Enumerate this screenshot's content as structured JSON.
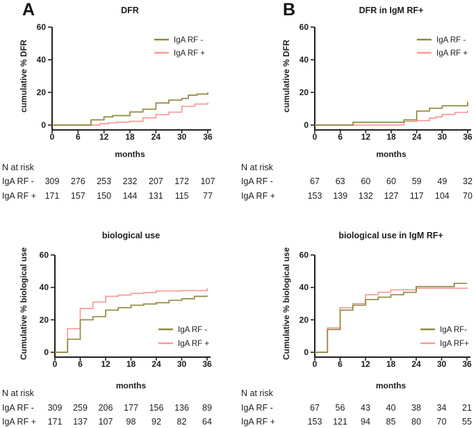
{
  "figure": {
    "panel_labels": [
      "A",
      "B"
    ],
    "x_label": "months",
    "n_at_risk_label": "N at risk",
    "colors": {
      "axis": "#231f20",
      "text": "#1c1c1c",
      "iga_rf_negative": "#8f893e",
      "iga_rf_positive": "#fb9a96"
    }
  },
  "chart_data": [
    {
      "id": "dfr",
      "type": "step_line",
      "title": "DFR",
      "xlabel": "months",
      "ylabel": "cumulative % DFR",
      "xlim": [
        0,
        36
      ],
      "ylim": [
        0,
        60
      ],
      "x_ticks": [
        0,
        6,
        12,
        18,
        24,
        30,
        36
      ],
      "y_ticks": [
        0,
        20,
        40,
        60
      ],
      "legend": [
        "IgA RF -",
        "IgA RF +"
      ],
      "series": [
        {
          "name": "IgA RF -",
          "color": "#8f893e",
          "points": [
            [
              0,
              0
            ],
            [
              9,
              3.2
            ],
            [
              12,
              5
            ],
            [
              14,
              5.8
            ],
            [
              18,
              8
            ],
            [
              21,
              9.7
            ],
            [
              24,
              13.5
            ],
            [
              27,
              15.3
            ],
            [
              30,
              16.3
            ],
            [
              31.5,
              18.3
            ],
            [
              33.5,
              19
            ],
            [
              36,
              20
            ]
          ]
        },
        {
          "name": "IgA RF +",
          "color": "#fb9a96",
          "points": [
            [
              0,
              0
            ],
            [
              11,
              0.8
            ],
            [
              13,
              1.3
            ],
            [
              15,
              1.8
            ],
            [
              18,
              2.3
            ],
            [
              21,
              4.4
            ],
            [
              24,
              6.4
            ],
            [
              27,
              7.9
            ],
            [
              30,
              11.4
            ],
            [
              33,
              12.9
            ],
            [
              36,
              13.8
            ]
          ]
        }
      ],
      "n_at_risk": {
        "rows": [
          {
            "label": "IgA RF -",
            "values": [
              309,
              276,
              253,
              232,
              207,
              172,
              107
            ]
          },
          {
            "label": "IgA RF +",
            "values": [
              171,
              157,
              150,
              144,
              131,
              115,
              77
            ]
          }
        ]
      }
    },
    {
      "id": "dfr-igm-rf-pos",
      "type": "step_line",
      "title": "DFR in IgM RF+",
      "xlabel": "months",
      "ylabel": "cumulative % DFR",
      "xlim": [
        0,
        36
      ],
      "ylim": [
        0,
        60
      ],
      "x_ticks": [
        0,
        6,
        12,
        18,
        24,
        30,
        36
      ],
      "y_ticks": [
        0,
        20,
        40,
        60
      ],
      "legend": [
        "IgA RF -",
        "IgA RF +"
      ],
      "series": [
        {
          "name": "IgA RF -",
          "color": "#8f893e",
          "points": [
            [
              0,
              0
            ],
            [
              9,
              1.7
            ],
            [
              21,
              3.2
            ],
            [
              24,
              8.6
            ],
            [
              27,
              10.3
            ],
            [
              30,
              11.8
            ],
            [
              36,
              14.3
            ]
          ]
        },
        {
          "name": "IgA RF +",
          "color": "#fb9a96",
          "points": [
            [
              0,
              0
            ],
            [
              21,
              2.2
            ],
            [
              24,
              2.7
            ],
            [
              27,
              4.2
            ],
            [
              28.5,
              5
            ],
            [
              30,
              6.5
            ],
            [
              33,
              7.8
            ],
            [
              36,
              9
            ]
          ]
        }
      ],
      "n_at_risk": {
        "rows": [
          {
            "label": "IgA RF -",
            "values": [
              67,
              63,
              60,
              60,
              59,
              49,
              32
            ]
          },
          {
            "label": "IgA RF +",
            "values": [
              153,
              139,
              132,
              127,
              117,
              104,
              70
            ]
          }
        ]
      }
    },
    {
      "id": "biological-use",
      "type": "step_line",
      "title": "biological use",
      "xlabel": "months",
      "ylabel": "Cumulative % biological use",
      "xlim": [
        0,
        36
      ],
      "ylim": [
        0,
        60
      ],
      "x_ticks": [
        0,
        6,
        12,
        18,
        24,
        30,
        36
      ],
      "y_ticks": [
        0,
        20,
        40,
        60
      ],
      "legend": [
        "IgA RF -",
        "IgA RF +"
      ],
      "series": [
        {
          "name": "IgA RF -",
          "color": "#8f893e",
          "points": [
            [
              0,
              0
            ],
            [
              3,
              8
            ],
            [
              6,
              20
            ],
            [
              9,
              22
            ],
            [
              12,
              26
            ],
            [
              15,
              27.5
            ],
            [
              18,
              29
            ],
            [
              21,
              29.8
            ],
            [
              24,
              30.6
            ],
            [
              27,
              32
            ],
            [
              30,
              33
            ],
            [
              33,
              34.5
            ],
            [
              36,
              35
            ]
          ]
        },
        {
          "name": "IgA RF +",
          "color": "#fb9a96",
          "points": [
            [
              0,
              0
            ],
            [
              3,
              14.5
            ],
            [
              6,
              27
            ],
            [
              9,
              31
            ],
            [
              12,
              34.5
            ],
            [
              15,
              35.3
            ],
            [
              18,
              36.3
            ],
            [
              21,
              36.8
            ],
            [
              24,
              37.8
            ],
            [
              30,
              38
            ],
            [
              36,
              39.5
            ]
          ]
        }
      ],
      "n_at_risk": {
        "rows": [
          {
            "label": "IgA RF -",
            "values": [
              309,
              259,
              206,
              177,
              156,
              136,
              89
            ]
          },
          {
            "label": "IgA RF +",
            "values": [
              171,
              137,
              107,
              98,
              92,
              82,
              64
            ]
          }
        ]
      }
    },
    {
      "id": "biological-use-igm-rf-pos",
      "type": "step_line",
      "title": "biological use in IgM RF+",
      "xlabel": "months",
      "ylabel": "Cumulative % biological use",
      "xlim": [
        0,
        36
      ],
      "ylim": [
        0,
        60
      ],
      "x_ticks": [
        0,
        6,
        12,
        18,
        24,
        30,
        36
      ],
      "y_ticks": [
        0,
        20,
        40,
        60
      ],
      "legend": [
        "IgA RF-",
        "IgA RF+"
      ],
      "series": [
        {
          "name": "IgA RF-",
          "color": "#8f893e",
          "points": [
            [
              0,
              0
            ],
            [
              3,
              14
            ],
            [
              6,
              26
            ],
            [
              9,
              29
            ],
            [
              12,
              32.5
            ],
            [
              15,
              34
            ],
            [
              18,
              35.5
            ],
            [
              21,
              37
            ],
            [
              24,
              40.5
            ],
            [
              33,
              42.5
            ],
            [
              36,
              42.5
            ]
          ]
        },
        {
          "name": "IgA RF+",
          "color": "#fb9a96",
          "points": [
            [
              0,
              0
            ],
            [
              3,
              15
            ],
            [
              6,
              27.5
            ],
            [
              9,
              30
            ],
            [
              12,
              35.5
            ],
            [
              15,
              37
            ],
            [
              18,
              38.5
            ],
            [
              24,
              39.5
            ],
            [
              36,
              40
            ]
          ]
        }
      ],
      "n_at_risk": {
        "rows": [
          {
            "label": "IgA RF -",
            "values": [
              67,
              56,
              43,
              40,
              38,
              34,
              21
            ]
          },
          {
            "label": "IgA RF +",
            "values": [
              153,
              121,
              94,
              85,
              80,
              70,
              55
            ]
          }
        ]
      }
    }
  ]
}
